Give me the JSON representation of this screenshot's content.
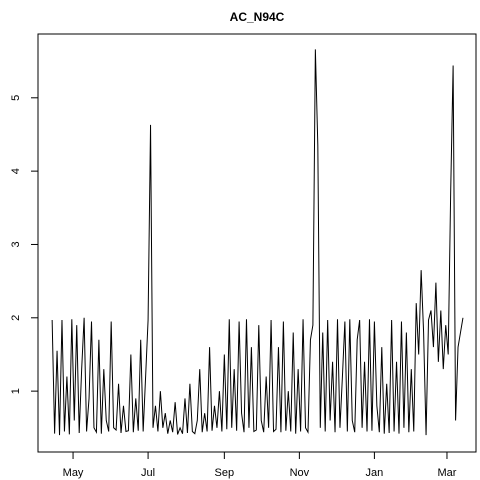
{
  "chart_data": {
    "type": "line",
    "title": "AC_N94C",
    "color": "#000000",
    "xlim": [
      1.5,
      357.6
    ],
    "ylim": [
      0.17,
      5.87
    ],
    "xticks": [
      {
        "value": 30,
        "label": "May"
      },
      {
        "value": 91,
        "label": "Jul"
      },
      {
        "value": 153,
        "label": "Sep"
      },
      {
        "value": 214,
        "label": "Nov"
      },
      {
        "value": 275,
        "label": "Jan"
      },
      {
        "value": 334,
        "label": "Mar"
      }
    ],
    "yticks": [
      1,
      2,
      3,
      4,
      5
    ],
    "x": [
      13,
      15,
      17,
      19,
      21,
      23,
      25,
      27,
      29,
      31,
      33,
      35,
      37,
      39,
      41,
      43,
      45,
      47,
      49,
      51,
      53,
      55,
      57,
      59,
      61,
      63,
      65,
      67,
      69,
      71,
      73,
      75,
      77,
      79,
      81,
      83,
      85,
      87,
      89,
      91,
      93,
      95,
      97,
      99,
      101,
      103,
      105,
      107,
      109,
      111,
      113,
      115,
      117,
      119,
      121,
      123,
      125,
      127,
      129,
      131,
      133,
      135,
      137,
      139,
      141,
      143,
      145,
      147,
      149,
      151,
      153,
      155,
      157,
      159,
      161,
      163,
      165,
      167,
      169,
      171,
      173,
      175,
      177,
      179,
      181,
      183,
      185,
      187,
      189,
      191,
      193,
      195,
      197,
      199,
      201,
      203,
      205,
      207,
      209,
      211,
      213,
      215,
      217,
      219,
      221,
      223,
      225,
      227,
      229,
      231,
      233,
      235,
      237,
      239,
      241,
      243,
      245,
      247,
      249,
      251,
      253,
      255,
      257,
      259,
      261,
      263,
      265,
      267,
      269,
      271,
      273,
      275,
      277,
      279,
      281,
      283,
      285,
      287,
      289,
      291,
      293,
      295,
      297,
      299,
      301,
      303,
      305,
      307,
      309,
      311,
      313,
      315,
      317,
      319,
      321,
      323,
      325,
      327,
      329,
      331,
      333,
      335,
      337,
      339,
      341,
      343,
      345,
      347
    ],
    "values": [
      1.97,
      0.42,
      1.55,
      0.4,
      1.97,
      0.45,
      1.2,
      0.41,
      1.98,
      0.6,
      1.9,
      0.43,
      1.3,
      2.0,
      0.45,
      0.9,
      1.95,
      0.5,
      0.44,
      1.7,
      0.42,
      1.3,
      0.6,
      0.45,
      1.95,
      0.5,
      0.47,
      1.1,
      0.43,
      0.8,
      0.45,
      0.46,
      1.5,
      0.44,
      0.9,
      0.46,
      1.7,
      0.45,
      1.2,
      1.97,
      4.63,
      0.5,
      0.8,
      0.45,
      1.0,
      0.5,
      0.7,
      0.42,
      0.6,
      0.44,
      0.85,
      0.41,
      0.5,
      0.42,
      0.9,
      0.43,
      1.1,
      0.45,
      0.42,
      0.6,
      1.3,
      0.44,
      0.7,
      0.45,
      1.6,
      0.46,
      0.8,
      0.5,
      1.0,
      0.45,
      1.5,
      0.48,
      1.98,
      0.5,
      1.3,
      0.46,
      1.95,
      0.7,
      0.44,
      1.98,
      0.5,
      1.6,
      0.45,
      0.47,
      1.9,
      0.6,
      0.44,
      1.2,
      0.5,
      1.97,
      0.45,
      0.48,
      1.6,
      0.44,
      1.95,
      0.46,
      1.0,
      0.45,
      1.8,
      0.42,
      1.3,
      0.45,
      1.98,
      0.5,
      0.44,
      1.7,
      1.9,
      5.66,
      4.35,
      0.5,
      1.8,
      0.45,
      1.97,
      0.6,
      1.4,
      0.44,
      1.98,
      0.5,
      1.2,
      1.95,
      0.45,
      1.98,
      0.6,
      0.44,
      1.7,
      1.97,
      0.5,
      1.4,
      0.45,
      1.98,
      0.46,
      1.95,
      0.8,
      0.44,
      1.6,
      0.42,
      1.1,
      0.43,
      1.97,
      0.45,
      1.4,
      0.42,
      1.95,
      0.5,
      1.8,
      0.44,
      1.3,
      0.45,
      2.2,
      1.5,
      2.65,
      1.8,
      0.4,
      1.97,
      2.1,
      1.6,
      2.48,
      1.4,
      2.1,
      1.3,
      1.9,
      1.5,
      3.7,
      5.44,
      0.6,
      1.6,
      1.8,
      2.0
    ]
  }
}
